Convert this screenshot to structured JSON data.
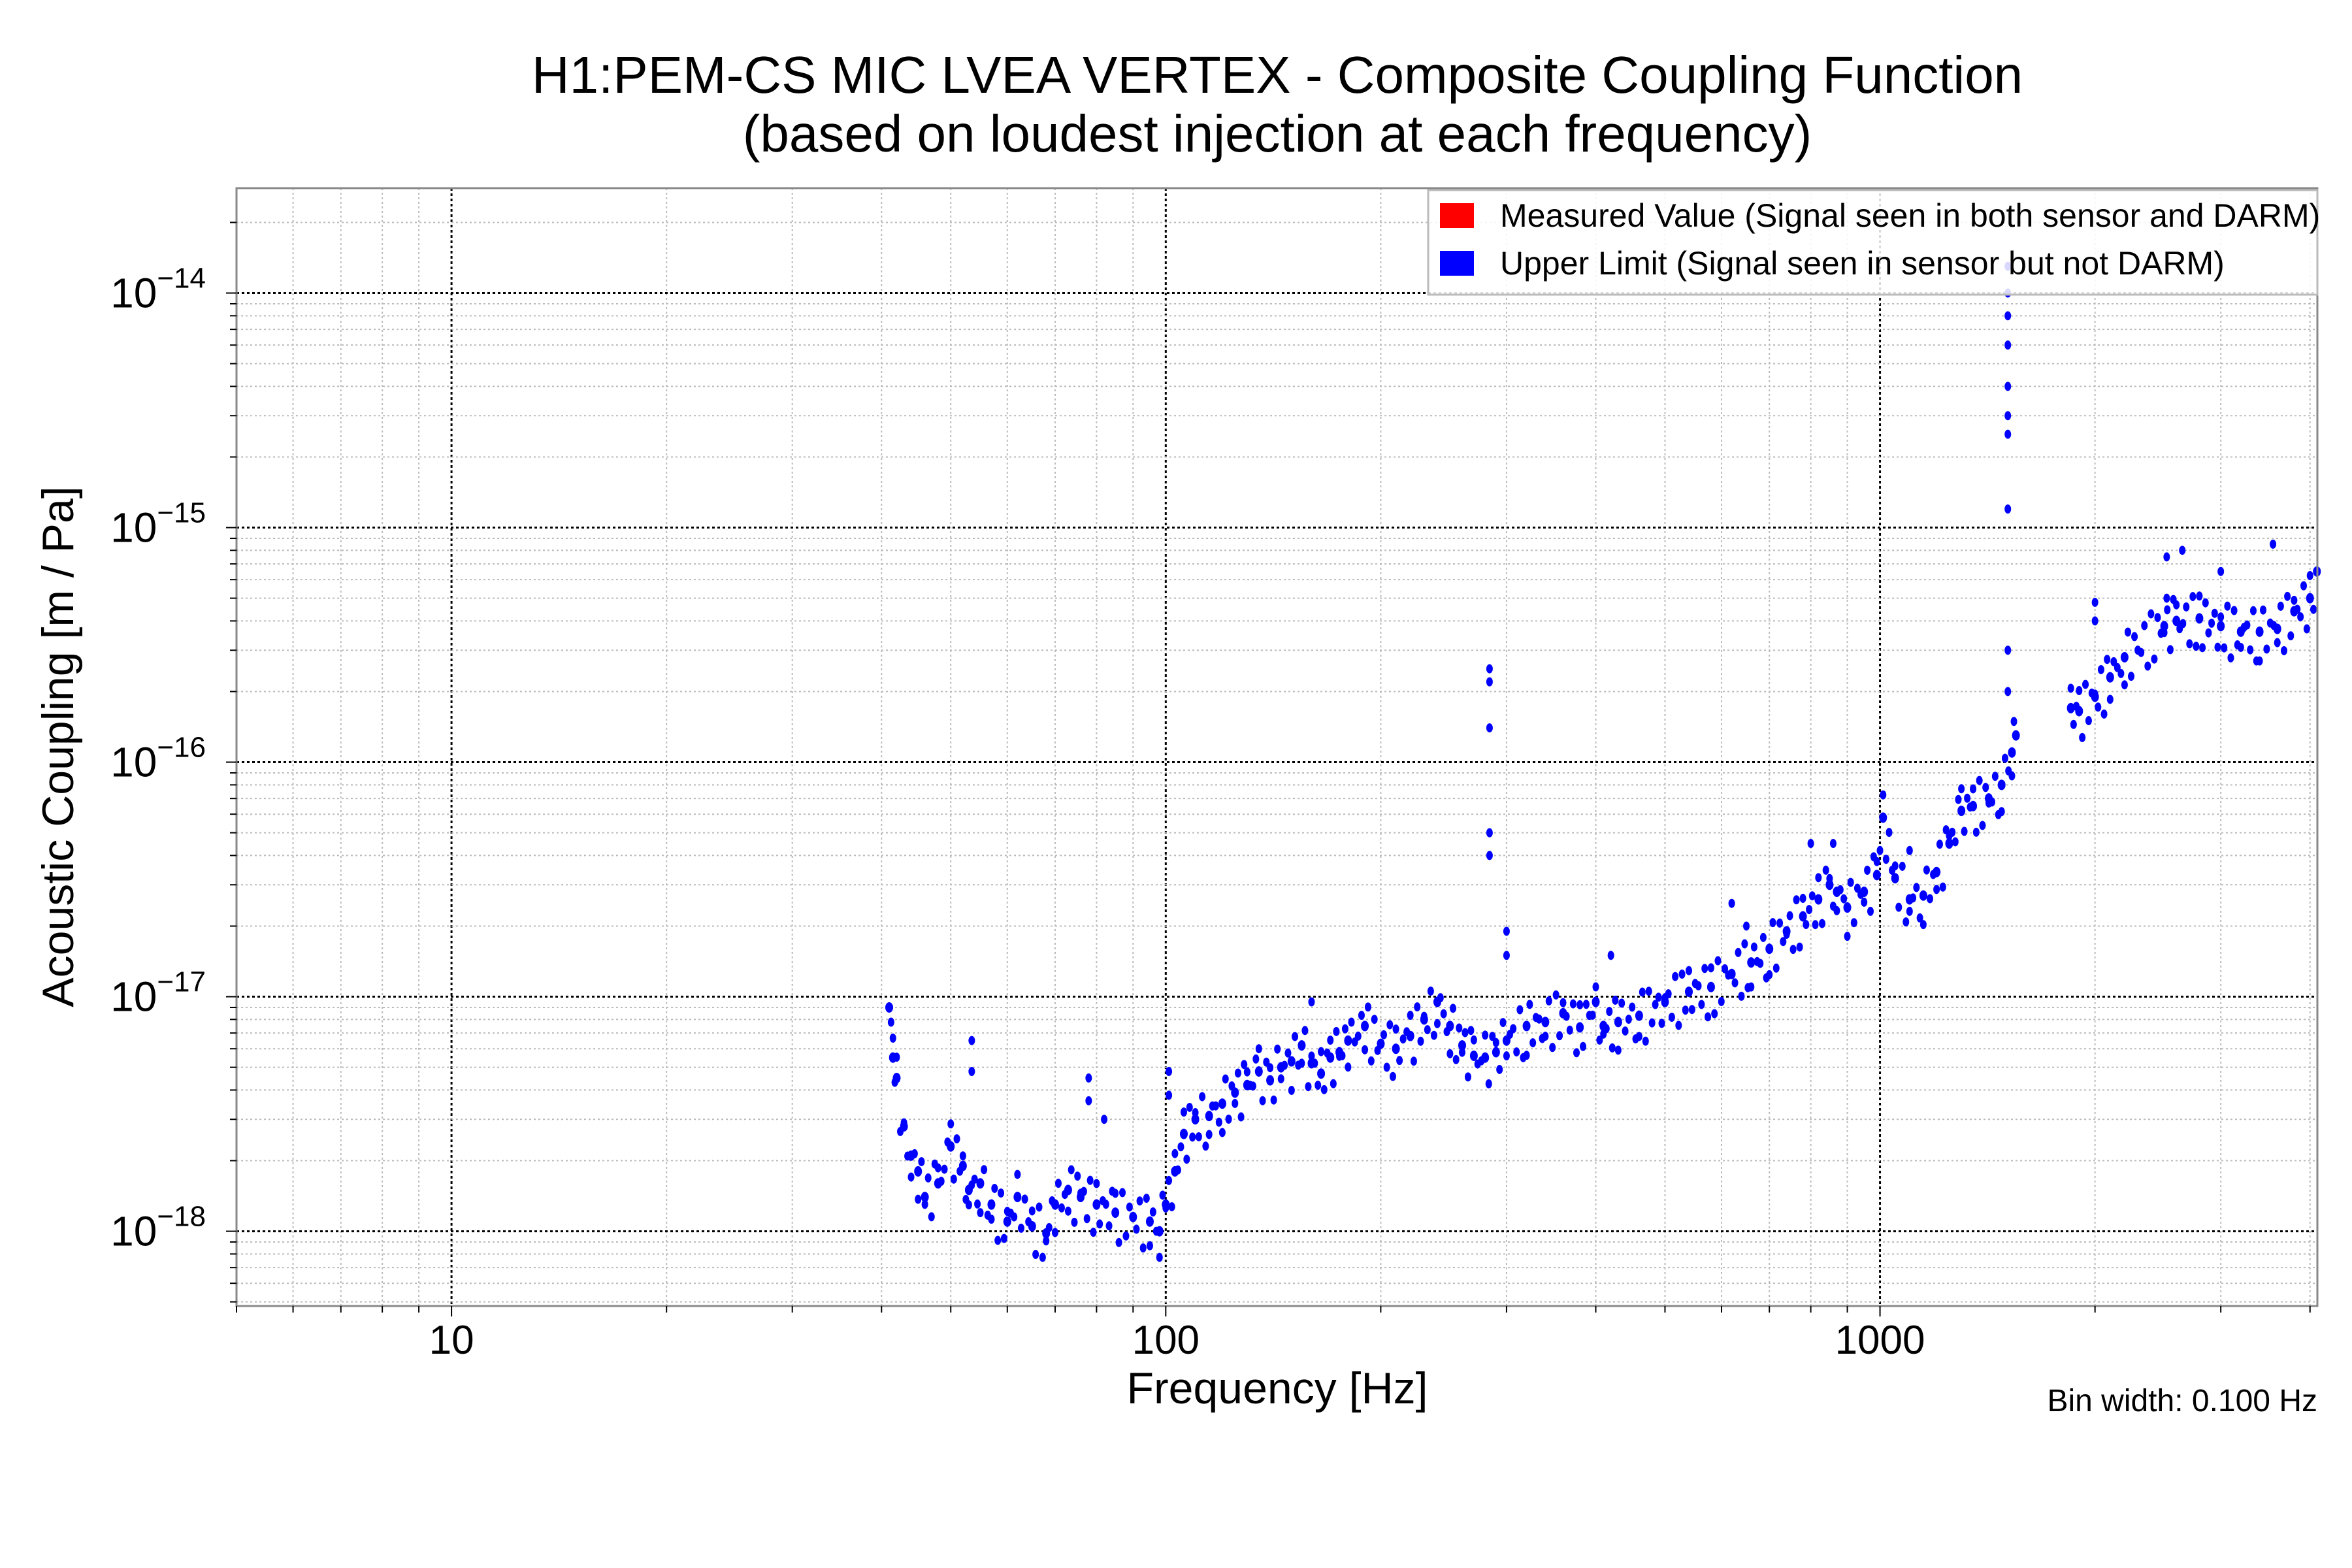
{
  "chart_data": {
    "type": "scatter",
    "title": "H1:PEM-CS MIC LVEA VERTEX - Composite Coupling Function",
    "subtitle": "(based on loudest injection at each frequency)",
    "xlabel": "Frequency [Hz]",
    "ylabel": "Acoustic Coupling [m / Pa]",
    "xscale": "log",
    "yscale": "log",
    "xlim": [
      5,
      4096
    ],
    "ylim": [
      4.8e-19,
      2.8e-14
    ],
    "x_ticks": [
      {
        "value": 10,
        "label": "10"
      },
      {
        "value": 100,
        "label": "100"
      },
      {
        "value": 1000,
        "label": "1000"
      }
    ],
    "y_ticks": [
      {
        "value": 1e-18,
        "base": "10",
        "exp": "−18"
      },
      {
        "value": 1e-17,
        "base": "10",
        "exp": "−17"
      },
      {
        "value": 1e-16,
        "base": "10",
        "exp": "−16"
      },
      {
        "value": 1e-15,
        "base": "10",
        "exp": "−15"
      },
      {
        "value": 1e-14,
        "base": "10",
        "exp": "−14"
      }
    ],
    "grid": true,
    "legend_position": "top-right",
    "annotation": "Bin width: 0.100 Hz",
    "series": [
      {
        "name": "Measured Value (Signal seen in both sensor and DARM)",
        "color": "#ff0000",
        "points": []
      },
      {
        "name": "Upper Limit (Signal seen in sensor but not DARM)",
        "color": "#0000ff",
        "baseline": [
          [
            41,
            9e-18
          ],
          [
            41.5,
            5.5e-18
          ],
          [
            42,
            4.5e-18
          ],
          [
            43,
            2.8e-18
          ],
          [
            44,
            2.1e-18
          ],
          [
            45,
            1.8e-18
          ],
          [
            46,
            1.4e-18
          ],
          [
            48,
            1.6e-18
          ],
          [
            50,
            2.3e-18
          ],
          [
            52,
            1.9e-18
          ],
          [
            53,
            1.5e-18
          ],
          [
            55,
            1.6e-18
          ],
          [
            57,
            1.3e-18
          ],
          [
            60,
            1.1e-18
          ],
          [
            62,
            1.4e-18
          ],
          [
            65,
            1.05e-18
          ],
          [
            68,
            9.8e-19
          ],
          [
            70,
            1.3e-18
          ],
          [
            73,
            1.5e-18
          ],
          [
            76,
            1.4e-18
          ],
          [
            80,
            1.3e-18
          ],
          [
            85,
            1.2e-18
          ],
          [
            90,
            1.15e-18
          ],
          [
            95,
            1.1e-18
          ],
          [
            98,
            1e-18
          ],
          [
            100,
            1.3e-18
          ],
          [
            103,
            1.8e-18
          ],
          [
            106,
            2.6e-18
          ],
          [
            110,
            3e-18
          ],
          [
            115,
            3.1e-18
          ],
          [
            120,
            3.5e-18
          ],
          [
            125,
            3.9e-18
          ],
          [
            130,
            4.2e-18
          ],
          [
            135,
            4.8e-18
          ],
          [
            140,
            4.4e-18
          ],
          [
            145,
            5e-18
          ],
          [
            150,
            5.3e-18
          ],
          [
            155,
            6.2e-18
          ],
          [
            160,
            5.2e-18
          ],
          [
            165,
            4.7e-18
          ],
          [
            170,
            5.5e-18
          ],
          [
            175,
            5.8e-18
          ],
          [
            180,
            6.5e-18
          ],
          [
            190,
            7.5e-18
          ],
          [
            200,
            6.3e-18
          ],
          [
            210,
            6e-18
          ],
          [
            220,
            6.8e-18
          ],
          [
            230,
            8e-18
          ],
          [
            240,
            9.5e-18
          ],
          [
            250,
            7.5e-18
          ],
          [
            260,
            6.2e-18
          ],
          [
            270,
            5.6e-18
          ],
          [
            280,
            5.5e-18
          ],
          [
            290,
            5.8e-18
          ],
          [
            300,
            6.5e-18
          ],
          [
            320,
            7.5e-18
          ],
          [
            340,
            7.8e-18
          ],
          [
            360,
            8.5e-18
          ],
          [
            380,
            7.4e-18
          ],
          [
            400,
            9.5e-18
          ],
          [
            410,
            7.5e-18
          ],
          [
            430,
            7.8e-18
          ],
          [
            460,
            8.3e-18
          ],
          [
            500,
            9.5e-18
          ],
          [
            540,
            1.05e-17
          ],
          [
            580,
            1.1e-17
          ],
          [
            620,
            1.25e-17
          ],
          [
            660,
            1.4e-17
          ],
          [
            700,
            1.6e-17
          ],
          [
            740,
            1.9e-17
          ],
          [
            780,
            2.2e-17
          ],
          [
            820,
            2.6e-17
          ],
          [
            850,
            3e-17
          ],
          [
            870,
            2.8e-17
          ],
          [
            900,
            2.4e-17
          ],
          [
            950,
            2.8e-17
          ],
          [
            990,
            3.3e-17
          ],
          [
            1010,
            5.8e-17
          ],
          [
            1050,
            3.2e-17
          ],
          [
            1100,
            2.6e-17
          ],
          [
            1150,
            2.7e-17
          ],
          [
            1200,
            3.4e-17
          ],
          [
            1250,
            4.5e-17
          ],
          [
            1300,
            6.2e-17
          ],
          [
            1350,
            6.5e-17
          ],
          [
            1420,
            7e-17
          ],
          [
            1480,
            8e-17
          ],
          [
            1530,
            1.1e-16
          ],
          [
            1550,
            1.3e-16
          ],
          [
            1850,
            1.7e-16
          ],
          [
            1900,
            1.65e-16
          ],
          [
            2000,
            1.9e-16
          ],
          [
            2100,
            2.3e-16
          ],
          [
            2200,
            2.8e-16
          ],
          [
            2500,
            3.8e-16
          ],
          [
            2600,
            4e-16
          ],
          [
            2800,
            4.1e-16
          ],
          [
            3000,
            3.8e-16
          ],
          [
            3200,
            3.6e-16
          ],
          [
            3400,
            3.6e-16
          ],
          [
            3600,
            3.7e-16
          ],
          [
            3800,
            4.4e-16
          ],
          [
            4000,
            5e-16
          ],
          [
            4090,
            6.5e-16
          ]
        ],
        "spikes": [
          [
            284,
            2.5e-16
          ],
          [
            284,
            2.2e-16
          ],
          [
            284,
            1.4e-16
          ],
          [
            284,
            5e-17
          ],
          [
            284,
            4e-17
          ],
          [
            300,
            1.9e-17
          ],
          [
            300,
            1.5e-17
          ],
          [
            53.5,
            6.5e-18
          ],
          [
            53.5,
            4.8e-18
          ],
          [
            78,
            4.5e-18
          ],
          [
            78,
            3.6e-18
          ],
          [
            82,
            3e-18
          ],
          [
            101,
            4.8e-18
          ],
          [
            101,
            3.8e-18
          ],
          [
            160,
            9.5e-18
          ],
          [
            1510,
            1.3e-14
          ],
          [
            1510,
            1e-14
          ],
          [
            1510,
            8e-15
          ],
          [
            1510,
            6e-15
          ],
          [
            1510,
            4e-15
          ],
          [
            1510,
            3e-15
          ],
          [
            1510,
            2.5e-15
          ],
          [
            1510,
            1.2e-15
          ],
          [
            1510,
            3e-16
          ],
          [
            1510,
            2e-16
          ],
          [
            2000,
            4.8e-16
          ],
          [
            2000,
            4e-16
          ],
          [
            2520,
            7.5e-16
          ],
          [
            2520,
            5e-16
          ],
          [
            2650,
            8e-16
          ],
          [
            3000,
            6.5e-16
          ],
          [
            3550,
            8.5e-16
          ],
          [
            620,
            2.5e-17
          ],
          [
            650,
            2e-17
          ],
          [
            800,
            4.5e-17
          ],
          [
            860,
            4.5e-17
          ],
          [
            420,
            1.5e-17
          ],
          [
            1100,
            4.2e-17
          ]
        ]
      }
    ]
  }
}
